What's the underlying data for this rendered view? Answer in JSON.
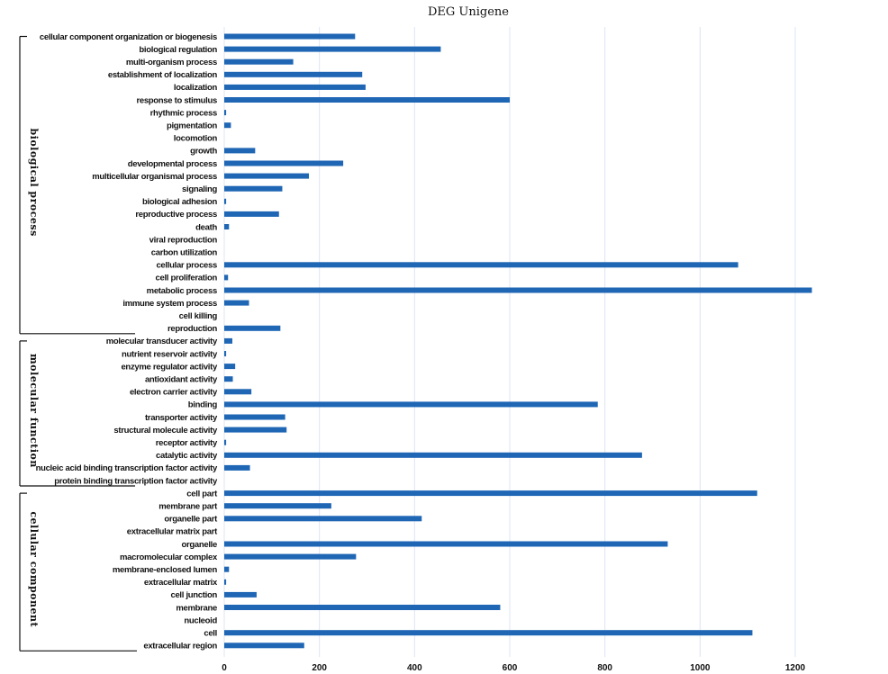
{
  "chart_data": {
    "type": "bar",
    "orientation": "horizontal",
    "title": "DEG Unigene",
    "xlabel": "",
    "ylabel": "",
    "xlim": [
      0,
      1300
    ],
    "xticks": [
      0,
      200,
      400,
      600,
      800,
      1000,
      1200
    ],
    "grid": "vertical",
    "bar_color": "#1f66b5",
    "groups": [
      {
        "name": "biological process",
        "categories": [
          "cellular component organization or biogenesis",
          "biological regulation",
          "multi-organism process",
          "establishment of localization",
          "localization",
          "response to stimulus",
          "rhythmic process",
          "pigmentation",
          "locomotion",
          "growth",
          "developmental process",
          "multicellular organismal process",
          "signaling",
          "biological adhesion",
          "reproductive process",
          "death",
          "viral reproduction",
          "carbon utilization",
          "cellular process",
          "cell proliferation",
          "metabolic process",
          "immune system process",
          "cell killing",
          "reproduction"
        ],
        "values": [
          275,
          455,
          145,
          290,
          297,
          600,
          4,
          14,
          0,
          65,
          250,
          178,
          122,
          4,
          115,
          10,
          0,
          0,
          1080,
          8,
          1235,
          52,
          0,
          118
        ]
      },
      {
        "name": "molecular function",
        "categories": [
          "molecular transducer activity",
          "nutrient reservoir activity",
          "enzyme regulator activity",
          "antioxidant activity",
          "electron carrier activity",
          "binding",
          "transporter activity",
          "structural molecule activity",
          "receptor activity",
          "catalytic activity",
          "nucleic acid binding transcription factor activity",
          "protein binding transcription factor activity"
        ],
        "values": [
          17,
          4,
          23,
          18,
          57,
          785,
          128,
          131,
          4,
          878,
          54,
          0
        ]
      },
      {
        "name": "cellular component",
        "categories": [
          "cell part",
          "membrane part",
          "organelle part",
          "extracellular matrix part",
          "organelle",
          "macromolecular complex",
          "membrane-enclosed lumen",
          "extracellular matrix",
          "cell junction",
          "membrane",
          "nucleoid",
          "cell",
          "extracellular region"
        ],
        "values": [
          1120,
          225,
          415,
          0,
          932,
          277,
          10,
          4,
          68,
          580,
          0,
          1110,
          168
        ]
      }
    ]
  }
}
